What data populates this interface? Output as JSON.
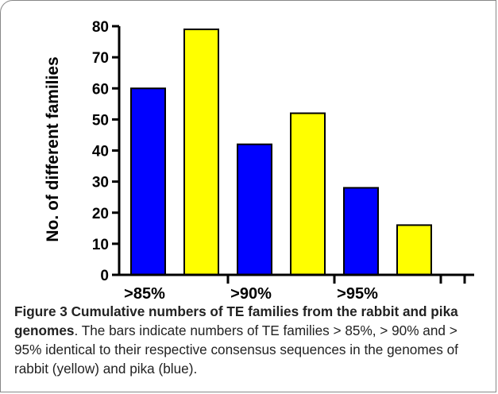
{
  "chart_data": {
    "type": "bar",
    "ylabel": "No. of different families",
    "xlabel": "",
    "title": "",
    "ylim": [
      0,
      80
    ],
    "yticks": [
      "0",
      "10",
      "20",
      "30",
      "40",
      "50",
      "60",
      "70",
      "80"
    ],
    "xtick_labels": [
      ">85%",
      ">90%",
      ">95%"
    ],
    "bars": [
      {
        "group": ">85%",
        "species": "pika",
        "color": "#0000ff",
        "value": 60
      },
      {
        "group": ">85%",
        "species": "rabbit",
        "color": "#ffff00",
        "value": 79
      },
      {
        "group": ">90%",
        "species": "pika",
        "color": "#0000ff",
        "value": 42
      },
      {
        "group": ">90%",
        "species": "rabbit",
        "color": "#ffff00",
        "value": 52
      },
      {
        "group": ">95%",
        "species": "pika",
        "color": "#0000ff",
        "value": 28
      },
      {
        "group": ">95%",
        "species": "rabbit",
        "color": "#ffff00",
        "value": 16
      }
    ],
    "grid": false,
    "legend": "none"
  },
  "caption": {
    "figure_number": "Figure 3",
    "title": " Cumulative numbers of TE families from the rabbit and pika genomes",
    "body": ". The bars indicate numbers of TE families > 85%, > 90% and > 95% identical to their respective consensus sequences in the genomes of rabbit (yellow) and pika (blue)."
  }
}
